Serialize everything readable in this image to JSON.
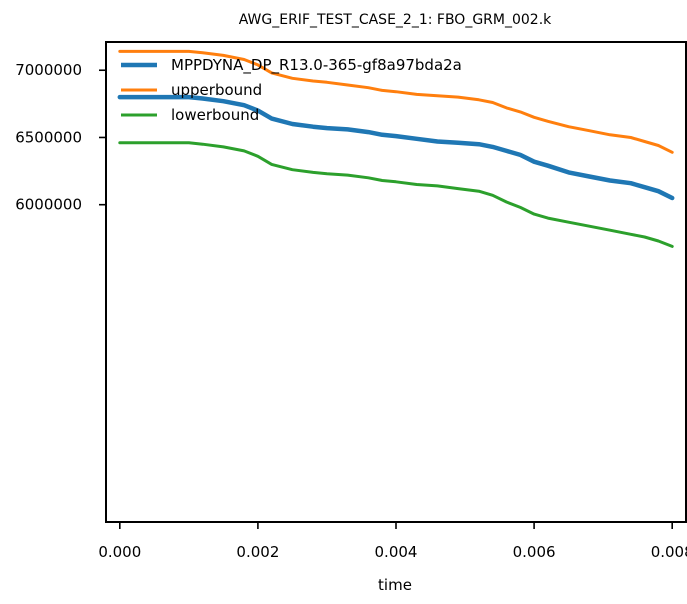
{
  "chart_data": {
    "type": "line",
    "title": "AWG_ERIF_TEST_CASE_2_1: FBO_GRM_002.k",
    "xlabel": "time",
    "ylabel": "",
    "xlim": [
      -0.0002,
      0.0082
    ],
    "ylim": [
      3640000,
      7210000
    ],
    "x_ticks": [
      0.0,
      0.002,
      0.004,
      0.006,
      0.008
    ],
    "x_tick_labels": [
      "0.000",
      "0.002",
      "0.004",
      "0.006",
      "0.008"
    ],
    "y_ticks": [
      7000000,
      6500000,
      6000000
    ],
    "y_tick_labels": [
      "7000000",
      "6500000",
      "6000000"
    ],
    "grid": false,
    "legend_position": "top-left",
    "series": [
      {
        "name": "MPPDYNA_DP_R13.0-365-gf8a97bda2a",
        "color": "#1f77b4",
        "x": [
          0.0,
          0.0005,
          0.001,
          0.0012,
          0.0015,
          0.0018,
          0.002,
          0.0022,
          0.0025,
          0.0028,
          0.003,
          0.0033,
          0.0036,
          0.0038,
          0.004,
          0.0043,
          0.0046,
          0.0049,
          0.0052,
          0.0054,
          0.0056,
          0.0058,
          0.006,
          0.0062,
          0.0065,
          0.0068,
          0.0071,
          0.0074,
          0.0076,
          0.0078,
          0.008
        ],
        "y": [
          6800000,
          6800000,
          6800000,
          6790000,
          6770000,
          6740000,
          6700000,
          6640000,
          6600000,
          6580000,
          6570000,
          6560000,
          6540000,
          6520000,
          6510000,
          6490000,
          6470000,
          6460000,
          6450000,
          6430000,
          6400000,
          6370000,
          6320000,
          6290000,
          6240000,
          6210000,
          6180000,
          6160000,
          6130000,
          6100000,
          6050000
        ]
      },
      {
        "name": "upperbound",
        "color": "#ff7f0e",
        "x": [
          0.0,
          0.0005,
          0.001,
          0.0012,
          0.0015,
          0.0018,
          0.002,
          0.0022,
          0.0025,
          0.0028,
          0.003,
          0.0033,
          0.0036,
          0.0038,
          0.004,
          0.0043,
          0.0046,
          0.0049,
          0.0052,
          0.0054,
          0.0056,
          0.0058,
          0.006,
          0.0062,
          0.0065,
          0.0068,
          0.0071,
          0.0074,
          0.0076,
          0.0078,
          0.008
        ],
        "y": [
          7140000,
          7140000,
          7140000,
          7130000,
          7110000,
          7080000,
          7040000,
          6980000,
          6940000,
          6920000,
          6910000,
          6890000,
          6870000,
          6850000,
          6840000,
          6820000,
          6810000,
          6800000,
          6780000,
          6760000,
          6720000,
          6690000,
          6650000,
          6620000,
          6580000,
          6550000,
          6520000,
          6500000,
          6470000,
          6440000,
          6390000
        ]
      },
      {
        "name": "lowerbound",
        "color": "#2ca02c",
        "x": [
          0.0,
          0.0005,
          0.001,
          0.0012,
          0.0015,
          0.0018,
          0.002,
          0.0022,
          0.0025,
          0.0028,
          0.003,
          0.0033,
          0.0036,
          0.0038,
          0.004,
          0.0043,
          0.0046,
          0.0049,
          0.0052,
          0.0054,
          0.0056,
          0.0058,
          0.006,
          0.0062,
          0.0065,
          0.0068,
          0.0071,
          0.0074,
          0.0076,
          0.0078,
          0.008
        ],
        "y": [
          6460000,
          6460000,
          6460000,
          6450000,
          6430000,
          6400000,
          6360000,
          6300000,
          6260000,
          6240000,
          6230000,
          6220000,
          6200000,
          6180000,
          6170000,
          6150000,
          6140000,
          6120000,
          6100000,
          6070000,
          6020000,
          5980000,
          5930000,
          5900000,
          5870000,
          5840000,
          5810000,
          5780000,
          5760000,
          5730000,
          5690000
        ]
      }
    ]
  }
}
